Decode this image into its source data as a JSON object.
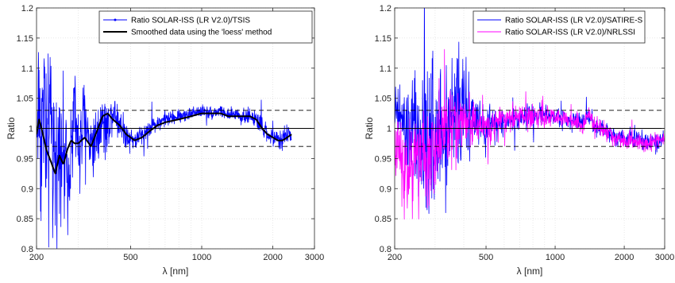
{
  "chart_data": [
    {
      "type": "line",
      "xlabel": "λ [nm]",
      "ylabel": "Ratio",
      "xscale": "log",
      "xlim": [
        200,
        3000
      ],
      "ylim": [
        0.8,
        1.2
      ],
      "grid": true,
      "xticks": [
        200,
        500,
        1000,
        2000,
        3000
      ],
      "xtick_labels": [
        "200",
        "500",
        "1000",
        "2000",
        "3000"
      ],
      "yticks": [
        0.8,
        0.85,
        0.9,
        0.95,
        1.0,
        1.05,
        1.1,
        1.15,
        1.2
      ],
      "ytick_labels": [
        "0.8",
        "0.85",
        "0.9",
        "0.95",
        "1",
        "1.05",
        "1.1",
        "1.15",
        "1.2"
      ],
      "legend_position": "top-right",
      "reference_lines": [
        {
          "y": 1.0,
          "style": "solid",
          "color": "#000000"
        },
        {
          "y": 1.03,
          "style": "dashed",
          "color": "#000000"
        },
        {
          "y": 0.97,
          "style": "dashed",
          "color": "#000000"
        }
      ],
      "series": [
        {
          "name": "Ratio SOLAR-ISS (LR V2.0)/TSIS",
          "color": "#0000ff",
          "marker": "dot",
          "noisy": true,
          "x": [
            200,
            205,
            210,
            215,
            220,
            230,
            240,
            250,
            260,
            270,
            280,
            290,
            300,
            320,
            340,
            360,
            380,
            400,
            420,
            450,
            480,
            520,
            560,
            600,
            650,
            700,
            800,
            900,
            1000,
            1100,
            1200,
            1300,
            1400,
            1500,
            1600,
            1700,
            1800,
            1900,
            2000,
            2100,
            2200,
            2300,
            2400
          ],
          "y": [
            0.99,
            1.05,
            0.97,
            1.08,
            0.93,
            1.02,
            0.91,
            1.0,
            0.95,
            0.93,
            0.97,
            1.03,
            0.96,
            1.02,
            0.97,
            0.99,
            1.02,
            1.0,
            1.03,
            1.01,
            0.99,
            0.98,
            0.99,
            1.0,
            1.01,
            1.015,
            1.02,
            1.025,
            1.03,
            1.025,
            1.03,
            1.02,
            1.025,
            1.02,
            1.02,
            1.015,
            1.0,
            0.99,
            0.985,
            0.98,
            0.985,
            0.99,
            0.99
          ],
          "spread": [
            0.05,
            0.12,
            0.12,
            0.12,
            0.12,
            0.1,
            0.09,
            0.08,
            0.08,
            0.07,
            0.07,
            0.06,
            0.06,
            0.05,
            0.05,
            0.04,
            0.035,
            0.03,
            0.025,
            0.02,
            0.018,
            0.015,
            0.012,
            0.012,
            0.01,
            0.01,
            0.008,
            0.008,
            0.008,
            0.008,
            0.008,
            0.008,
            0.01,
            0.01,
            0.01,
            0.012,
            0.012,
            0.012,
            0.012,
            0.012,
            0.012,
            0.012,
            0.01
          ]
        },
        {
          "name": "Smoothed data using the 'loess' method",
          "color": "#000000",
          "noisy": false,
          "x": [
            200,
            205,
            210,
            220,
            230,
            240,
            250,
            260,
            270,
            280,
            290,
            300,
            320,
            340,
            360,
            380,
            400,
            420,
            450,
            480,
            520,
            560,
            600,
            650,
            700,
            800,
            900,
            1000,
            1100,
            1200,
            1300,
            1400,
            1500,
            1600,
            1700,
            1800,
            1900,
            2000,
            2100,
            2200,
            2300,
            2400
          ],
          "y": [
            0.99,
            1.015,
            1.0,
            0.965,
            0.945,
            0.925,
            0.955,
            0.94,
            0.965,
            0.98,
            0.975,
            0.975,
            0.985,
            0.97,
            0.995,
            1.02,
            1.025,
            1.015,
            1.005,
            0.99,
            0.98,
            0.985,
            0.995,
            1.005,
            1.01,
            1.015,
            1.02,
            1.025,
            1.025,
            1.025,
            1.02,
            1.02,
            1.02,
            1.02,
            1.015,
            1.0,
            0.99,
            0.985,
            0.98,
            0.98,
            0.985,
            0.99
          ]
        }
      ]
    },
    {
      "type": "line",
      "xlabel": "λ [nm]",
      "ylabel": "Ratio",
      "xscale": "log",
      "xlim": [
        200,
        3000
      ],
      "ylim": [
        0.8,
        1.2
      ],
      "grid": true,
      "xticks": [
        200,
        500,
        1000,
        2000,
        3000
      ],
      "xtick_labels": [
        "200",
        "500",
        "1000",
        "2000",
        "3000"
      ],
      "yticks": [
        0.8,
        0.85,
        0.9,
        0.95,
        1.0,
        1.05,
        1.1,
        1.15,
        1.2
      ],
      "ytick_labels": [
        "0.8",
        "0.85",
        "0.9",
        "0.95",
        "1",
        "1.05",
        "1.1",
        "1.15",
        "1.2"
      ],
      "legend_position": "top-right",
      "reference_lines": [
        {
          "y": 1.0,
          "style": "solid",
          "color": "#000000"
        },
        {
          "y": 1.03,
          "style": "dashed",
          "color": "#000000"
        },
        {
          "y": 0.97,
          "style": "dashed",
          "color": "#000000"
        }
      ],
      "series": [
        {
          "name": "Ratio SOLAR-ISS (LR V2.0)/SATIRE-S",
          "color": "#0000ff",
          "noisy": true,
          "x": [
            200,
            210,
            220,
            230,
            240,
            250,
            260,
            270,
            280,
            290,
            300,
            320,
            340,
            360,
            380,
            400,
            420,
            450,
            480,
            520,
            560,
            600,
            650,
            700,
            750,
            800,
            850,
            900,
            1000,
            1100,
            1200,
            1300,
            1400,
            1500,
            1600,
            1800,
            2000,
            2200,
            2400,
            2600,
            2800,
            3000
          ],
          "y": [
            1.03,
            1.02,
            1.0,
            0.99,
            0.99,
            0.98,
            0.95,
            0.96,
            0.97,
            1.0,
            0.98,
            1.0,
            1.01,
            1.02,
            1.04,
            1.03,
            1.02,
            1.01,
            1.0,
            1.005,
            1.01,
            1.01,
            1.015,
            1.02,
            1.02,
            1.02,
            1.02,
            1.02,
            1.02,
            1.015,
            1.015,
            1.01,
            1.02,
            1.005,
            1.0,
            0.99,
            0.985,
            0.985,
            0.98,
            0.98,
            0.98,
            0.985
          ],
          "spread": [
            0.03,
            0.04,
            0.05,
            0.06,
            0.08,
            0.09,
            0.1,
            0.1,
            0.1,
            0.1,
            0.08,
            0.08,
            0.08,
            0.07,
            0.08,
            0.06,
            0.05,
            0.04,
            0.025,
            0.02,
            0.015,
            0.015,
            0.015,
            0.015,
            0.015,
            0.015,
            0.015,
            0.012,
            0.012,
            0.012,
            0.012,
            0.012,
            0.012,
            0.012,
            0.012,
            0.012,
            0.012,
            0.012,
            0.012,
            0.01,
            0.01,
            0.01
          ]
        },
        {
          "name": "Ratio SOLAR-ISS (LR V2.0)/NRLSSI",
          "color": "#ff00ff",
          "noisy": true,
          "x": [
            200,
            210,
            220,
            230,
            240,
            250,
            260,
            270,
            280,
            290,
            300,
            320,
            340,
            360,
            380,
            400,
            420,
            450,
            480,
            520,
            560,
            600,
            650,
            700,
            750,
            800,
            850,
            900,
            1000,
            1100,
            1200,
            1300,
            1400,
            1500,
            1600,
            1800,
            2000,
            2200,
            2400,
            2600,
            2800,
            3000
          ],
          "y": [
            0.98,
            0.95,
            0.94,
            0.93,
            0.95,
            0.97,
            0.93,
            0.96,
            0.94,
            0.95,
            0.97,
            0.99,
            1.0,
            1.0,
            1.01,
            1.02,
            1.01,
            1.01,
            1.0,
            1.005,
            1.01,
            1.015,
            1.02,
            1.02,
            1.015,
            1.02,
            1.025,
            1.02,
            1.015,
            1.015,
            1.01,
            1.005,
            1.02,
            1.005,
            1.0,
            0.985,
            0.98,
            0.98,
            0.975,
            0.975,
            0.98,
            0.985
          ],
          "spread": [
            0.03,
            0.05,
            0.06,
            0.06,
            0.07,
            0.07,
            0.07,
            0.06,
            0.06,
            0.06,
            0.05,
            0.05,
            0.05,
            0.04,
            0.04,
            0.035,
            0.03,
            0.025,
            0.02,
            0.018,
            0.016,
            0.016,
            0.016,
            0.016,
            0.016,
            0.016,
            0.016,
            0.014,
            0.012,
            0.012,
            0.012,
            0.012,
            0.012,
            0.012,
            0.012,
            0.012,
            0.012,
            0.012,
            0.012,
            0.01,
            0.01,
            0.01
          ]
        }
      ]
    }
  ]
}
